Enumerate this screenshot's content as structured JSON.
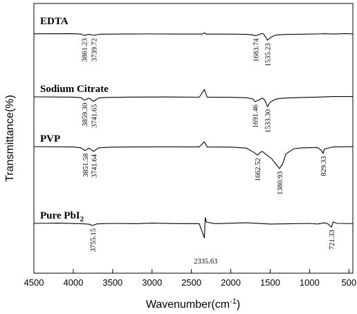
{
  "chart_data": {
    "type": "line",
    "title": "",
    "xlabel": "Wavenumber(cm",
    "xlabel_sup": "-1",
    "xlabel_end": ")",
    "ylabel": "Transmittance(%)",
    "xlim": [
      4500,
      450
    ],
    "x_direction": "reversed",
    "xticks": [
      4500,
      4000,
      3500,
      3000,
      2500,
      2000,
      1500,
      1000,
      500
    ],
    "y_ticks_shown": false,
    "grid": false,
    "legend": "none",
    "series": [
      {
        "name": "EDTA",
        "points": [
          [
            4500,
            -0.2
          ],
          [
            4000,
            -0.3
          ],
          [
            3900,
            0.3
          ],
          [
            3861.23,
            2.5
          ],
          [
            3800,
            0.8
          ],
          [
            3739.72,
            2.3
          ],
          [
            3650,
            0.4
          ],
          [
            3300,
            0.1
          ],
          [
            3000,
            0.0
          ],
          [
            2700,
            0.2
          ],
          [
            2360,
            0.2
          ],
          [
            2335,
            -1.7
          ],
          [
            2310,
            0.3
          ],
          [
            2000,
            0.3
          ],
          [
            1800,
            0.8
          ],
          [
            1720,
            1.8
          ],
          [
            1683.74,
            2.8
          ],
          [
            1640,
            1.0
          ],
          [
            1600,
            -0.8
          ],
          [
            1580,
            0.8
          ],
          [
            1560,
            5.0
          ],
          [
            1535.23,
            10.5
          ],
          [
            1500,
            6.5
          ],
          [
            1450,
            3.0
          ],
          [
            1400,
            1.5
          ],
          [
            1300,
            0.9
          ],
          [
            1100,
            0.5
          ],
          [
            900,
            0.0
          ],
          [
            800,
            -0.3
          ],
          [
            700,
            0.2
          ],
          [
            550,
            -0.4
          ],
          [
            450,
            0.0
          ]
        ],
        "peaks": [
          {
            "label": "3861.23",
            "x": 3861.23,
            "depth": 2.5
          },
          {
            "label": "3739.72",
            "x": 3739.72,
            "depth": 2.3
          },
          {
            "label": "1683.74",
            "x": 1683.74,
            "depth": 2.8
          },
          {
            "label": "1535.23",
            "x": 1535.23,
            "depth": 10.5
          }
        ]
      },
      {
        "name": "Sodium Citrate",
        "points": [
          [
            4500,
            0.0
          ],
          [
            4000,
            0.5
          ],
          [
            3900,
            1.5
          ],
          [
            3859.3,
            5.5
          ],
          [
            3800,
            2.0
          ],
          [
            3741.65,
            7.5
          ],
          [
            3680,
            2.0
          ],
          [
            3600,
            1.0
          ],
          [
            3300,
            0.5
          ],
          [
            2800,
            0.2
          ],
          [
            2400,
            0.6
          ],
          [
            2335,
            -12.0
          ],
          [
            2300,
            0.5
          ],
          [
            2000,
            0.8
          ],
          [
            1800,
            1.5
          ],
          [
            1720,
            3.5
          ],
          [
            1691.46,
            8.0
          ],
          [
            1640,
            5.0
          ],
          [
            1600,
            2.0
          ],
          [
            1570,
            5.0
          ],
          [
            1533.3,
            16.0
          ],
          [
            1500,
            9.0
          ],
          [
            1450,
            5.0
          ],
          [
            1400,
            3.0
          ],
          [
            1300,
            2.0
          ],
          [
            1100,
            1.0
          ],
          [
            900,
            0.5
          ],
          [
            700,
            -0.5
          ],
          [
            450,
            -0.5
          ]
        ],
        "peaks": [
          {
            "label": "3859.30",
            "x": 3859.3,
            "depth": 5.5
          },
          {
            "label": "3741.65",
            "x": 3741.65,
            "depth": 7.5
          },
          {
            "label": "1691.46",
            "x": 1691.46,
            "depth": 8.0
          },
          {
            "label": "1533.30",
            "x": 1533.3,
            "depth": 16.0
          }
        ]
      },
      {
        "name": "PVP",
        "points": [
          [
            4500,
            0.0
          ],
          [
            4000,
            0.5
          ],
          [
            3900,
            2.0
          ],
          [
            3851.58,
            6.5
          ],
          [
            3800,
            2.5
          ],
          [
            3741.64,
            8.0
          ],
          [
            3680,
            2.0
          ],
          [
            3500,
            0.8
          ],
          [
            3000,
            0.3
          ],
          [
            2400,
            0.4
          ],
          [
            2335,
            -8.0
          ],
          [
            2300,
            0.4
          ],
          [
            2000,
            0.8
          ],
          [
            1800,
            2.5
          ],
          [
            1700,
            10.0
          ],
          [
            1662.52,
            14.0
          ],
          [
            1620,
            9.0
          ],
          [
            1600,
            8.0
          ],
          [
            1540,
            14.0
          ],
          [
            1480,
            20.0
          ],
          [
            1420,
            30.0
          ],
          [
            1380.93,
            36.0
          ],
          [
            1340,
            28.0
          ],
          [
            1300,
            12.0
          ],
          [
            1200,
            3.5
          ],
          [
            1100,
            2.0
          ],
          [
            900,
            1.5
          ],
          [
            850,
            6.0
          ],
          [
            829.33,
            11.0
          ],
          [
            810,
            4.0
          ],
          [
            700,
            0.5
          ],
          [
            450,
            0.0
          ]
        ],
        "peaks": [
          {
            "label": "3851.58",
            "x": 3851.58,
            "depth": 6.5
          },
          {
            "label": "3741.64",
            "x": 3741.64,
            "depth": 8.0
          },
          {
            "label": "1662.52",
            "x": 1662.52,
            "depth": 14.0
          },
          {
            "label": "1380.93",
            "x": 1380.93,
            "depth": 36.0
          },
          {
            "label": "829.33",
            "x": 829.33,
            "depth": 11.0
          }
        ]
      },
      {
        "name": "Pure PbI",
        "name_sub": "2",
        "points": [
          [
            4500,
            0.0
          ],
          [
            4200,
            -0.5
          ],
          [
            3900,
            0.5
          ],
          [
            3800,
            1.2
          ],
          [
            3755.15,
            3.5
          ],
          [
            3700,
            0.8
          ],
          [
            3500,
            0.0
          ],
          [
            3200,
            0.5
          ],
          [
            3000,
            -0.5
          ],
          [
            2700,
            0.3
          ],
          [
            2400,
            0.5
          ],
          [
            2335.63,
            24.0
          ],
          [
            2325,
            -10.0
          ],
          [
            2310,
            -2.0
          ],
          [
            2200,
            0.5
          ],
          [
            1800,
            -1.0
          ],
          [
            1500,
            1.0
          ],
          [
            1200,
            0.5
          ],
          [
            1000,
            0.0
          ],
          [
            900,
            1.0
          ],
          [
            800,
            -1.0
          ],
          [
            760,
            1.5
          ],
          [
            721.33,
            6.0
          ],
          [
            700,
            -2.5
          ],
          [
            650,
            0.0
          ],
          [
            450,
            0.5
          ]
        ],
        "peaks": [
          {
            "label": "3755.15",
            "x": 3755.15,
            "depth": 3.5
          },
          {
            "label": "2335.63",
            "x": 2335.63,
            "depth": 24.0
          },
          {
            "label": "721.33",
            "x": 721.33,
            "depth": 6.0
          }
        ]
      }
    ]
  }
}
